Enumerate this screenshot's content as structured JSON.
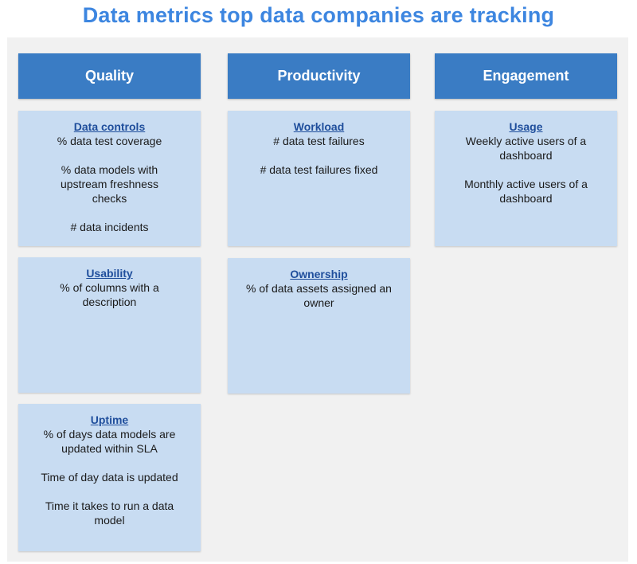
{
  "title": "Data metrics top data companies are tracking",
  "columns": [
    {
      "header": "Quality",
      "cards": [
        {
          "title": "Data controls",
          "metrics": [
            "% data test coverage",
            "% data models with upstream freshness checks",
            "# data incidents"
          ]
        },
        {
          "title": "Usability",
          "metrics": [
            "% of columns with a description"
          ]
        },
        {
          "title": "Uptime",
          "metrics": [
            "% of days data models are updated within SLA",
            "Time of day data is updated",
            "Time it takes to run a data model"
          ]
        }
      ]
    },
    {
      "header": "Productivity",
      "cards": [
        {
          "title": "Workload",
          "metrics": [
            "# data test failures",
            "# data test failures fixed"
          ]
        },
        {
          "title": "Ownership",
          "metrics": [
            "% of data assets assigned an owner"
          ]
        }
      ]
    },
    {
      "header": "Engagement",
      "cards": [
        {
          "title": "Usage",
          "metrics": [
            "Weekly active users of a dashboard",
            "Monthly active users of a dashboard"
          ]
        }
      ]
    }
  ],
  "colors": {
    "title": "#3d86e0",
    "header_bg": "#3a7cc4",
    "card_bg": "#c8dcf2",
    "card_title": "#1f4e9c",
    "board_bg": "#f1f1f1"
  }
}
